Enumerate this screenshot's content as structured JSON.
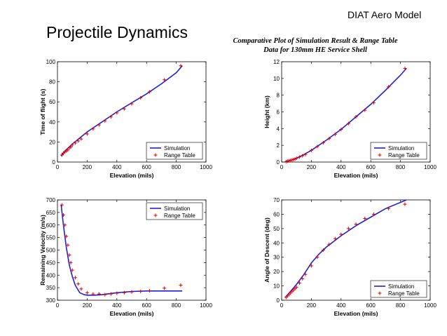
{
  "slide": {
    "title": "Projectile Dynamics",
    "brand": "DIAT Aero Model",
    "subtitle_line1": "Comparative Plot of Simulation Result & Range Table",
    "subtitle_line2": "Data for 130mm HE Service Shell"
  },
  "colors": {
    "simulation": "#1f1fdc",
    "range_table": "#e00000",
    "axis": "#000000"
  },
  "chart_data": [
    {
      "type": "line",
      "xlabel": "Elevation (mils)",
      "ylabel": "Time of flight (s)",
      "xlim": [
        0,
        1000
      ],
      "ylim": [
        0,
        100
      ],
      "xticks": [
        0,
        200,
        400,
        600,
        800,
        1000
      ],
      "yticks": [
        0,
        20,
        40,
        60,
        80,
        100
      ],
      "legend_position": "bottom-right",
      "series": [
        {
          "name": "Simulation",
          "style": "line",
          "x": [
            25,
            50,
            100,
            150,
            200,
            300,
            400,
            500,
            600,
            700,
            800,
            840
          ],
          "y": [
            6,
            11,
            18,
            24,
            30,
            40,
            50,
            59,
            68,
            78,
            89,
            96
          ]
        },
        {
          "name": "Range Table",
          "style": "markers",
          "x": [
            30,
            40,
            50,
            60,
            70,
            80,
            90,
            100,
            120,
            140,
            160,
            200,
            240,
            280,
            320,
            360,
            400,
            450,
            500,
            560,
            620,
            720,
            830
          ],
          "y": [
            7,
            9,
            10,
            11,
            12,
            14,
            15,
            17,
            19,
            21,
            23,
            28,
            33,
            37,
            41,
            45,
            49,
            53,
            58,
            64,
            70,
            82,
            96
          ]
        }
      ]
    },
    {
      "type": "line",
      "xlabel": "Elevation (mils)",
      "ylabel": "Height (km)",
      "xlim": [
        0,
        1000
      ],
      "ylim": [
        0,
        12
      ],
      "xticks": [
        0,
        200,
        400,
        600,
        800,
        1000
      ],
      "yticks": [
        0,
        2,
        4,
        6,
        8,
        10,
        12
      ],
      "legend_position": "bottom-right",
      "series": [
        {
          "name": "Simulation",
          "style": "line",
          "x": [
            25,
            50,
            100,
            150,
            200,
            300,
            400,
            500,
            600,
            700,
            800,
            840
          ],
          "y": [
            0.05,
            0.15,
            0.45,
            0.9,
            1.4,
            2.6,
            3.9,
            5.4,
            6.9,
            8.6,
            10.4,
            11.2
          ]
        },
        {
          "name": "Range Table",
          "style": "markers",
          "x": [
            30,
            40,
            50,
            60,
            70,
            80,
            90,
            100,
            120,
            140,
            160,
            200,
            240,
            280,
            320,
            360,
            400,
            450,
            500,
            560,
            620,
            720,
            830
          ],
          "y": [
            0.05,
            0.1,
            0.15,
            0.2,
            0.25,
            0.3,
            0.35,
            0.45,
            0.6,
            0.75,
            0.9,
            1.4,
            1.85,
            2.3,
            2.8,
            3.3,
            3.9,
            4.6,
            5.4,
            6.2,
            7.1,
            9.0,
            11.2
          ]
        }
      ]
    },
    {
      "type": "line",
      "xlabel": "Elevation (mils)",
      "ylabel": "Remaining Velocity (m/s)",
      "xlim": [
        0,
        1000
      ],
      "ylim": [
        300,
        700
      ],
      "xticks": [
        0,
        200,
        400,
        600,
        800,
        1000
      ],
      "yticks": [
        300,
        350,
        400,
        450,
        500,
        550,
        600,
        650,
        700
      ],
      "legend_position": "top-right",
      "series": [
        {
          "name": "Simulation",
          "style": "line",
          "x": [
            25,
            40,
            60,
            80,
            100,
            120,
            150,
            180,
            200,
            250,
            300,
            400,
            500,
            600,
            700,
            840
          ],
          "y": [
            680,
            600,
            510,
            440,
            395,
            360,
            330,
            322,
            320,
            320,
            322,
            330,
            335,
            337,
            337,
            337
          ]
        },
        {
          "name": "Range Table",
          "style": "markers",
          "x": [
            30,
            40,
            50,
            60,
            70,
            80,
            90,
            100,
            120,
            140,
            160,
            200,
            240,
            280,
            320,
            360,
            400,
            450,
            500,
            560,
            620,
            720,
            830
          ],
          "y": [
            680,
            640,
            600,
            555,
            520,
            480,
            450,
            420,
            390,
            365,
            345,
            330,
            325,
            325,
            322,
            325,
            328,
            330,
            333,
            335,
            338,
            348,
            360
          ]
        }
      ]
    },
    {
      "type": "line",
      "xlabel": "Elevation (mils)",
      "ylabel": "Angle of Descent (deg)",
      "xlim": [
        0,
        1000
      ],
      "ylim": [
        0,
        70
      ],
      "xticks": [
        0,
        200,
        400,
        600,
        800,
        1000
      ],
      "yticks": [
        0,
        10,
        20,
        30,
        40,
        50,
        60,
        70
      ],
      "legend_position": "bottom-right",
      "series": [
        {
          "name": "Simulation",
          "style": "line",
          "x": [
            25,
            50,
            100,
            150,
            200,
            250,
            300,
            400,
            500,
            600,
            700,
            840
          ],
          "y": [
            2,
            5,
            11,
            18,
            26,
            32,
            37,
            45,
            52,
            58,
            64,
            70
          ]
        },
        {
          "name": "Range Table",
          "style": "markers",
          "x": [
            30,
            40,
            50,
            60,
            70,
            80,
            90,
            100,
            120,
            140,
            160,
            200,
            240,
            280,
            320,
            360,
            400,
            450,
            500,
            560,
            620,
            720,
            830
          ],
          "y": [
            2,
            3,
            4,
            5,
            6,
            7,
            8,
            9,
            12,
            15,
            18,
            24,
            30,
            35,
            39,
            43,
            46,
            50,
            53,
            57,
            60,
            64,
            67
          ]
        }
      ]
    }
  ]
}
